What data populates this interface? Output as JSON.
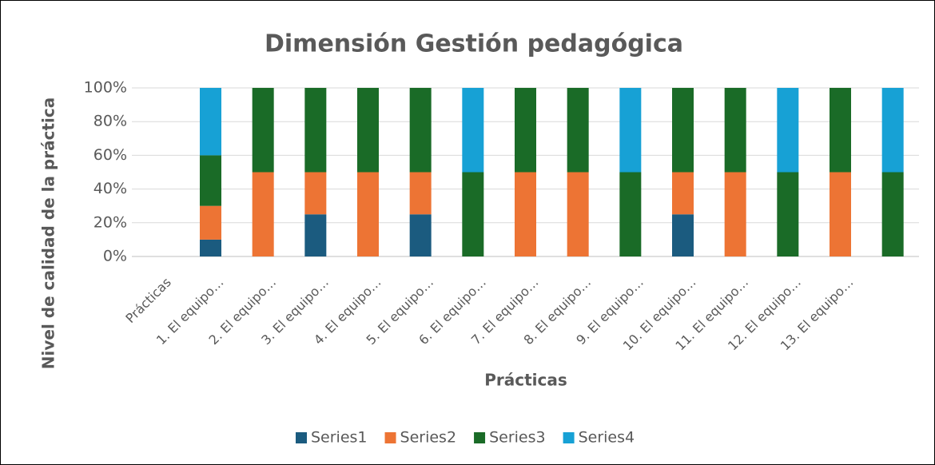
{
  "chart_data": {
    "type": "stacked_bar",
    "title": "Dimensión Gestión pedagógica",
    "xlabel": "Prácticas",
    "ylabel": "Nivel de calidad de la práctica",
    "categories": [
      "Prácticas",
      "1. El equipo…",
      "2. El equipo…",
      "3. El equipo…",
      "4. El equipo…",
      "5. El equipo…",
      "6. El equipo…",
      "7. El equipo…",
      "8. El equipo…",
      "9. El equipo…",
      "10. El equipo…",
      "11. El equipo…",
      "12. El equipo…",
      "13. El equipo…",
      null
    ],
    "series": [
      {
        "name": "Series1",
        "color": "#1b5b7f",
        "values": [
          null,
          10,
          0,
          25,
          0,
          25,
          0,
          0,
          0,
          0,
          25,
          0,
          0,
          0,
          0
        ]
      },
      {
        "name": "Series2",
        "color": "#ed7434",
        "values": [
          null,
          20,
          50,
          25,
          50,
          25,
          0,
          50,
          50,
          0,
          25,
          50,
          0,
          50,
          0
        ]
      },
      {
        "name": "Series3",
        "color": "#1a6b27",
        "values": [
          null,
          30,
          50,
          50,
          50,
          50,
          50,
          50,
          50,
          50,
          50,
          50,
          50,
          50,
          50
        ]
      },
      {
        "name": "Series4",
        "color": "#17a1d5",
        "values": [
          null,
          40,
          0,
          0,
          0,
          0,
          50,
          0,
          0,
          50,
          0,
          0,
          50,
          0,
          50
        ]
      }
    ],
    "ylim": [
      0,
      100
    ],
    "yticks": [
      {
        "value": 0,
        "label": "0%"
      },
      {
        "value": 20,
        "label": "20%"
      },
      {
        "value": 40,
        "label": "40%"
      },
      {
        "value": 60,
        "label": "60%"
      },
      {
        "value": 80,
        "label": "80%"
      },
      {
        "value": 100,
        "label": "100%"
      }
    ],
    "grid": true,
    "legend": "bottom"
  }
}
